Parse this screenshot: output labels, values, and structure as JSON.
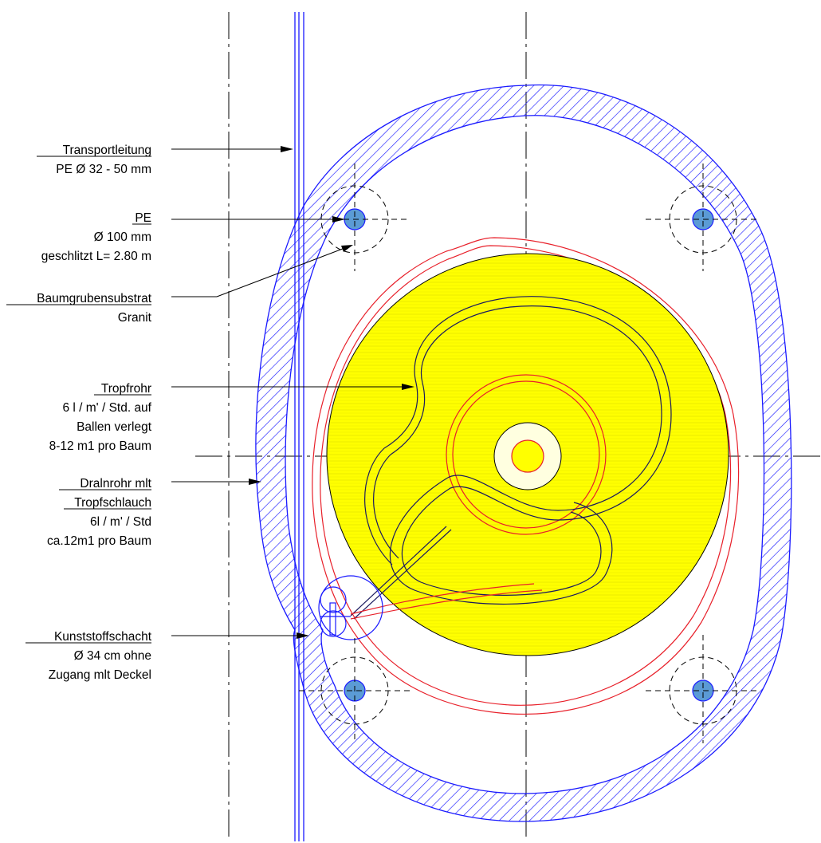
{
  "title": "",
  "colors": {
    "hatch": "#1a1aff",
    "root_ball": "#ffff00",
    "irrigation_line": "#e8202a",
    "drip_pipe": "#1a1a5e",
    "pipe_fill": "#5b9bd5"
  },
  "labels": [
    {
      "id": "transport",
      "lines": [
        {
          "text": "Transportleitung",
          "underline": true
        },
        {
          "text": "PE Ø 32 - 50 mm",
          "underline": false
        }
      ]
    },
    {
      "id": "pe",
      "lines": [
        {
          "text": "PE",
          "underline": true
        },
        {
          "text": "Ø 100 mm",
          "underline": false
        },
        {
          "text": "geschlitzt L= 2.80 m",
          "underline": false
        }
      ]
    },
    {
      "id": "substrat",
      "lines": [
        {
          "text": "Baumgrubensubstrat",
          "underline": true
        },
        {
          "text": "Granit",
          "underline": false
        }
      ]
    },
    {
      "id": "tropfrohr",
      "lines": [
        {
          "text": "Tropfrohr",
          "underline": true
        },
        {
          "text": "6 l / m' / Std. auf",
          "underline": false
        },
        {
          "text": "Ballen verlegt",
          "underline": false
        },
        {
          "text": "8-12 m1 pro Baum",
          "underline": false
        }
      ]
    },
    {
      "id": "drainrohr",
      "lines": [
        {
          "text": "Dralnrohr mlt",
          "underline": true
        },
        {
          "text": "Tropfschlauch",
          "underline": true
        },
        {
          "text": "6l / m' / Std",
          "underline": false
        },
        {
          "text": "ca.12m1 pro Baum",
          "underline": false
        }
      ]
    },
    {
      "id": "schacht",
      "lines": [
        {
          "text": "Kunststoffschacht",
          "underline": true
        },
        {
          "text": "Ø 34 cm ohne",
          "underline": false
        },
        {
          "text": "Zugang mlt Deckel",
          "underline": false
        }
      ]
    }
  ]
}
